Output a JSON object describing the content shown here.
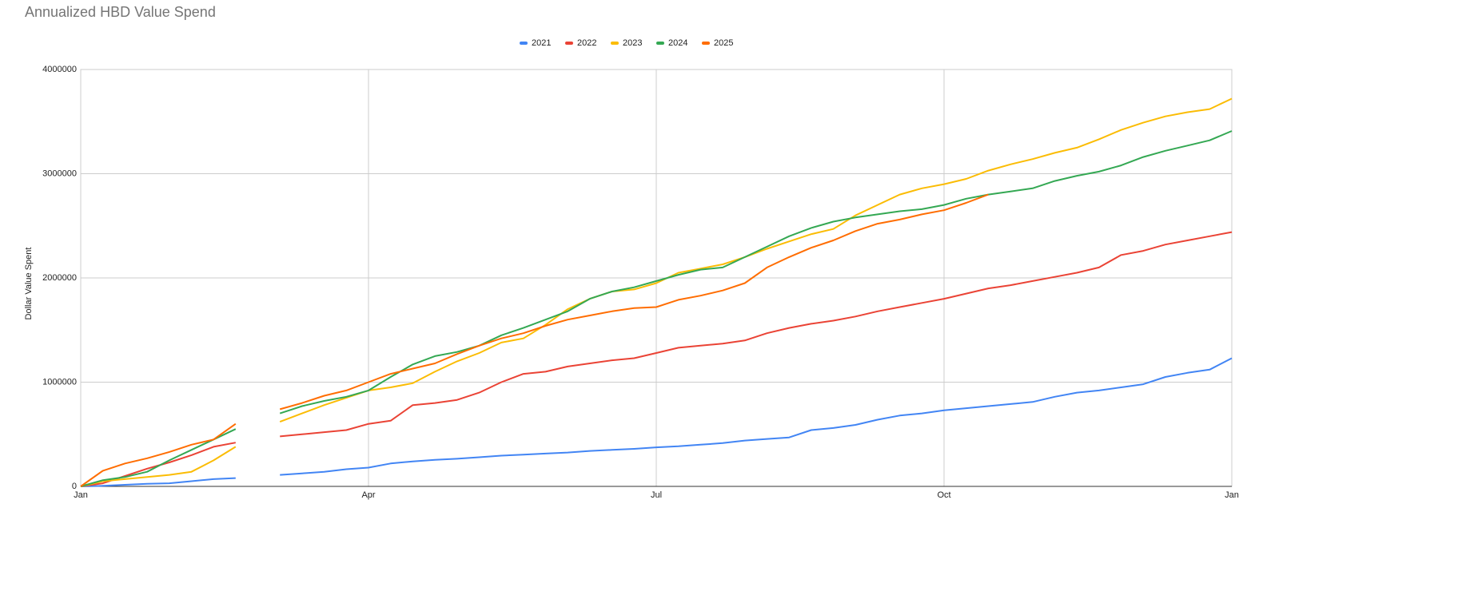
{
  "chart_data": {
    "type": "line",
    "title": "Annualized HBD Value Spend",
    "y_label": "Dollar Value Spent",
    "categories": [
      "Jan",
      null,
      null,
      null,
      null,
      null,
      null,
      null,
      null,
      null,
      null,
      null,
      null,
      "Apr",
      null,
      null,
      null,
      null,
      null,
      null,
      null,
      null,
      null,
      null,
      null,
      null,
      "Jul",
      null,
      null,
      null,
      null,
      null,
      null,
      null,
      null,
      null,
      null,
      null,
      null,
      "Oct",
      null,
      null,
      null,
      null,
      null,
      null,
      null,
      null,
      null,
      null,
      null,
      null,
      "Jan"
    ],
    "ylim": [
      0,
      4000000
    ],
    "yticks": [
      0,
      1000000,
      2000000,
      3000000,
      4000000
    ],
    "grid": true,
    "legend": "top",
    "series": [
      {
        "name": "2021",
        "color": "#4285f4",
        "values": [
          0,
          5000,
          15000,
          25000,
          30000,
          50000,
          70000,
          80000,
          null,
          110000,
          125000,
          140000,
          165000,
          180000,
          220000,
          240000,
          255000,
          265000,
          280000,
          295000,
          305000,
          315000,
          325000,
          340000,
          350000,
          360000,
          375000,
          385000,
          400000,
          415000,
          440000,
          455000,
          470000,
          540000,
          560000,
          590000,
          640000,
          680000,
          700000,
          730000,
          750000,
          770000,
          790000,
          810000,
          860000,
          900000,
          920000,
          950000,
          980000,
          1050000,
          1090000,
          1120000,
          1230000
        ]
      },
      {
        "name": "2022",
        "color": "#ea4335",
        "values": [
          0,
          30000,
          100000,
          170000,
          230000,
          300000,
          380000,
          420000,
          null,
          480000,
          500000,
          520000,
          540000,
          600000,
          630000,
          780000,
          800000,
          830000,
          900000,
          1000000,
          1080000,
          1100000,
          1150000,
          1180000,
          1210000,
          1230000,
          1280000,
          1330000,
          1350000,
          1370000,
          1400000,
          1470000,
          1520000,
          1560000,
          1590000,
          1630000,
          1680000,
          1720000,
          1760000,
          1800000,
          1850000,
          1900000,
          1930000,
          1970000,
          2010000,
          2050000,
          2100000,
          2220000,
          2260000,
          2320000,
          2360000,
          2400000,
          2440000
        ]
      },
      {
        "name": "2023",
        "color": "#fbbc04",
        "values": [
          0,
          50000,
          70000,
          90000,
          110000,
          140000,
          250000,
          380000,
          null,
          620000,
          700000,
          780000,
          850000,
          920000,
          950000,
          990000,
          1100000,
          1200000,
          1280000,
          1380000,
          1420000,
          1550000,
          1700000,
          1800000,
          1870000,
          1890000,
          1950000,
          2050000,
          2090000,
          2130000,
          2200000,
          2280000,
          2350000,
          2420000,
          2470000,
          2600000,
          2700000,
          2800000,
          2860000,
          2900000,
          2950000,
          3030000,
          3090000,
          3140000,
          3200000,
          3250000,
          3330000,
          3420000,
          3490000,
          3550000,
          3590000,
          3620000,
          3720000
        ]
      },
      {
        "name": "2024",
        "color": "#34a853",
        "values": [
          0,
          60000,
          90000,
          140000,
          250000,
          350000,
          450000,
          550000,
          null,
          700000,
          770000,
          820000,
          860000,
          920000,
          1050000,
          1170000,
          1250000,
          1290000,
          1350000,
          1450000,
          1520000,
          1600000,
          1680000,
          1800000,
          1870000,
          1910000,
          1970000,
          2030000,
          2080000,
          2100000,
          2200000,
          2300000,
          2400000,
          2480000,
          2540000,
          2580000,
          2610000,
          2640000,
          2660000,
          2700000,
          2760000,
          2800000,
          2830000,
          2860000,
          2930000,
          2980000,
          3020000,
          3080000,
          3160000,
          3220000,
          3270000,
          3320000,
          3410000
        ]
      },
      {
        "name": "2025",
        "color": "#ff6d01",
        "values": [
          0,
          150000,
          220000,
          270000,
          330000,
          400000,
          450000,
          600000,
          null,
          740000,
          800000,
          870000,
          920000,
          1000000,
          1080000,
          1130000,
          1180000,
          1270000,
          1350000,
          1420000,
          1470000,
          1540000,
          1600000,
          1640000,
          1680000,
          1710000,
          1720000,
          1790000,
          1830000,
          1880000,
          1950000,
          2100000,
          2200000,
          2290000,
          2360000,
          2450000,
          2520000,
          2560000,
          2610000,
          2650000,
          2720000,
          2800000,
          null,
          null,
          null,
          null,
          null,
          null,
          null,
          null,
          null,
          null,
          null
        ]
      }
    ]
  }
}
